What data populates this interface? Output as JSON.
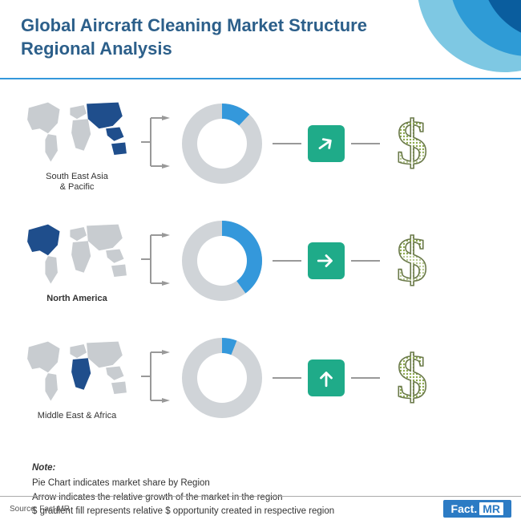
{
  "header": {
    "title_line1": "Global Aircraft Cleaning Market Structure",
    "title_line2": "Regional Analysis",
    "title_fontsize": 22,
    "title_color": "#2c5f8a",
    "underline_color": "#3498db",
    "decoration_colors": [
      "#0a5d9e",
      "#2e9bd6",
      "#7ec8e3"
    ]
  },
  "rows": [
    {
      "label": "South East Asia\n& Pacific",
      "label_bold": false,
      "donut": {
        "percent": 12,
        "start_deg": -90,
        "fg": "#3498db",
        "bg": "#d0d4d8",
        "inner": "#ffffff",
        "thickness_ratio": 0.62
      },
      "arrow": {
        "rotation": -35,
        "box_color": "#1fab89",
        "arrow_color": "#ffffff"
      },
      "dollar_fill": 0.35,
      "map_highlight": "sea_pacific"
    },
    {
      "label": "North America",
      "label_bold": true,
      "donut": {
        "percent": 40,
        "start_deg": -90,
        "fg": "#3498db",
        "bg": "#d0d4d8",
        "inner": "#ffffff",
        "thickness_ratio": 0.62
      },
      "arrow": {
        "rotation": 0,
        "box_color": "#1fab89",
        "arrow_color": "#ffffff"
      },
      "dollar_fill": 0.55,
      "map_highlight": "north_america"
    },
    {
      "label": "Middle East & Africa",
      "label_bold": false,
      "donut": {
        "percent": 6,
        "start_deg": -90,
        "fg": "#3498db",
        "bg": "#d0d4d8",
        "inner": "#ffffff",
        "thickness_ratio": 0.62
      },
      "arrow": {
        "rotation": -90,
        "box_color": "#1fab89",
        "arrow_color": "#ffffff"
      },
      "dollar_fill": 0.18,
      "map_highlight": "mea"
    }
  ],
  "note": {
    "title": "Note:",
    "lines": [
      "Pie Chart indicates market share by Region",
      "Arrow indicates the relative growth of the market in the region",
      "$ gradient fill represents relative $ opportunity created in respective region"
    ]
  },
  "footer": {
    "source": "Source: Fact.MR",
    "logo_main": "Fact.",
    "logo_sub": "MR"
  },
  "palette": {
    "map_base": "#c8ccd0",
    "map_highlight": "#1f4e8c",
    "connector": "#999999",
    "dollar_outline": "#6b7a4a",
    "dollar_fill": "#8aa84a",
    "dollar_bg": "#ffffff"
  }
}
